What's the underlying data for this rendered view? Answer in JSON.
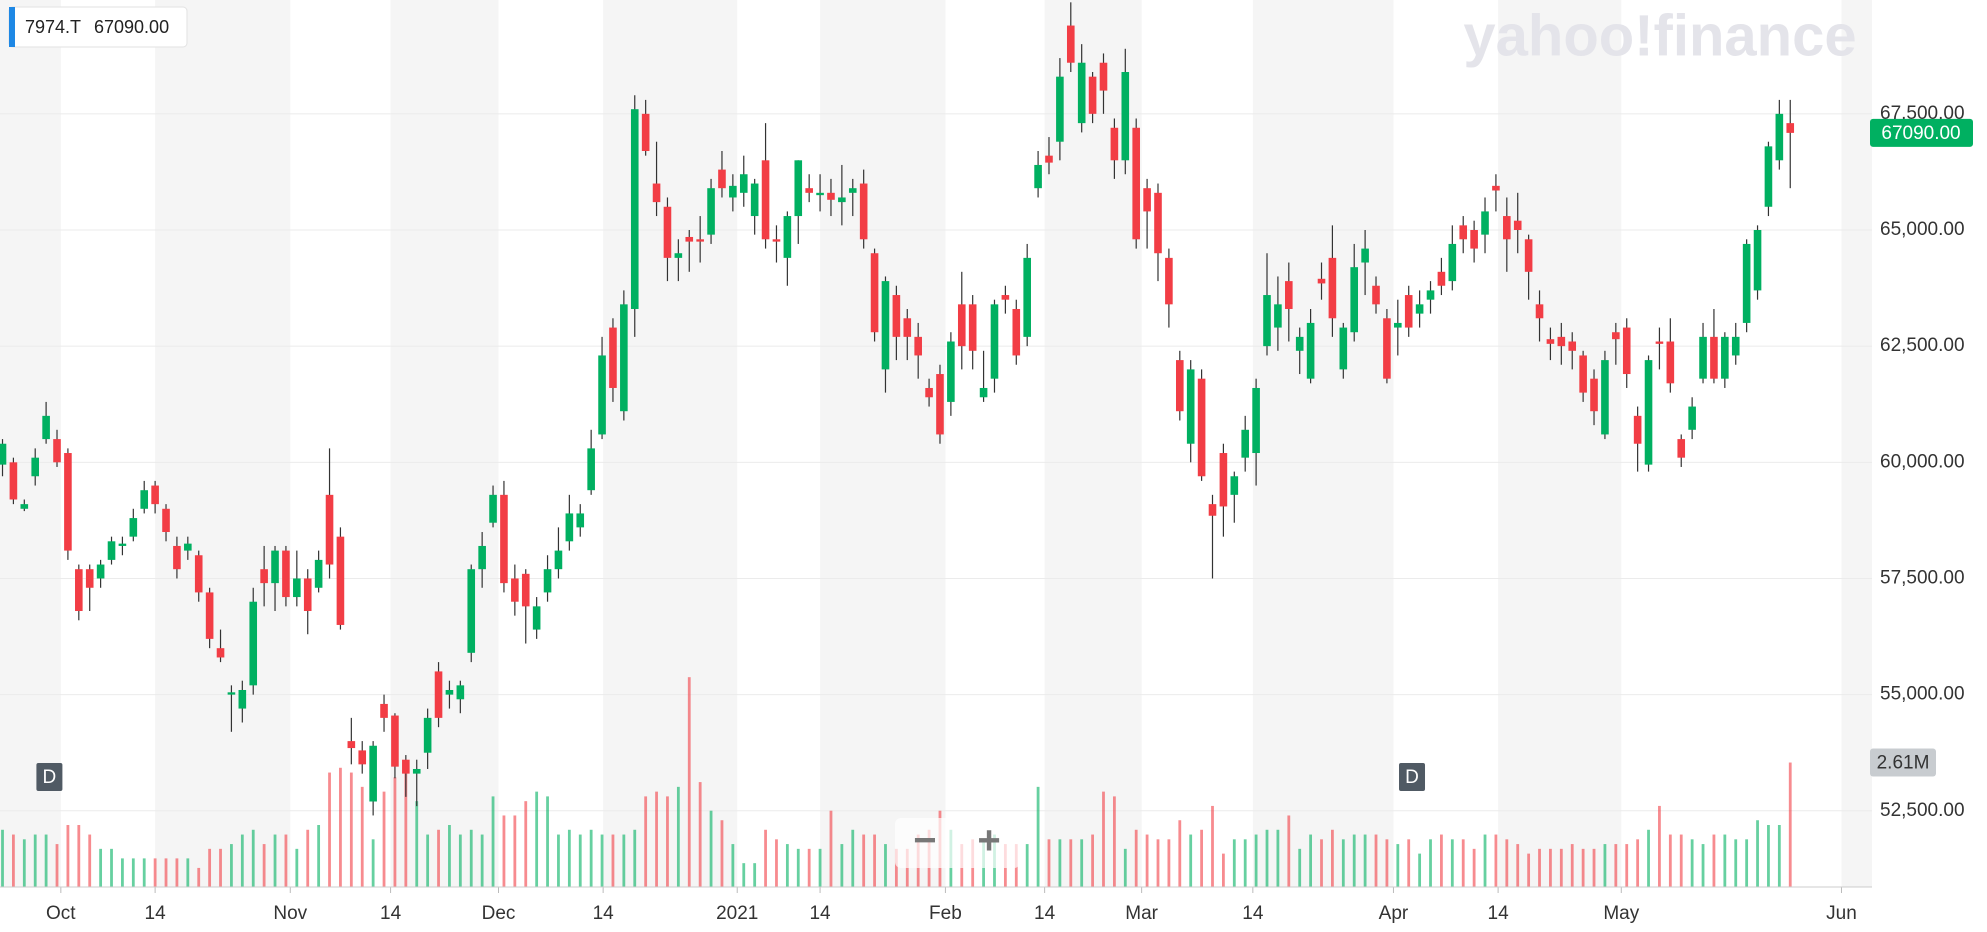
{
  "chart_data": {
    "type": "candlestick",
    "symbol": "7974.T",
    "last_price": {
      "value": 67090,
      "label": "67090.00"
    },
    "last_volume": {
      "value": 2.61,
      "label": "2.61M"
    },
    "watermark": "yahoo!finance",
    "event_markers": [
      {
        "index": 1,
        "label": "D"
      },
      {
        "index": 126,
        "label": "D"
      }
    ],
    "zoom_controls": [
      "−",
      "+"
    ],
    "up_color": "#00b061",
    "down_color": "#f23d45",
    "open": [
      59950,
      60000,
      59000,
      59700,
      60500,
      60500,
      60200,
      57700,
      57700,
      57500,
      57900,
      58200,
      58400,
      59000,
      59500,
      59000,
      58200,
      58100,
      58000,
      57200,
      56000,
      55000,
      54700,
      55200,
      57700,
      57400,
      58100,
      57100,
      57500,
      57300,
      59300,
      58400,
      54000,
      53800,
      52700,
      54800,
      54550,
      53600,
      53300,
      53750,
      55500,
      55000,
      54900,
      55900,
      57700,
      58700,
      59300,
      57500,
      57600,
      56400,
      57200,
      57700,
      58300,
      58600,
      59400,
      60600,
      62900,
      61100,
      63300,
      67500,
      66000,
      65500,
      64400,
      64850,
      64800,
      64900,
      66300,
      65700,
      65800,
      65300,
      66500,
      64800,
      64400,
      65300,
      65900,
      65750,
      65800,
      65600,
      65800,
      66000,
      64500,
      62000,
      63600,
      63100,
      62700,
      61600,
      61900,
      61300,
      63400,
      63400,
      61400,
      61800,
      63600,
      63300,
      62700,
      65900,
      66600,
      66900,
      69400,
      67300,
      68300,
      68600,
      67200,
      66500,
      67200,
      65900,
      65800,
      64400,
      62200,
      60400,
      61800,
      59100,
      60200,
      59300,
      60100,
      60200,
      62500,
      62900,
      63900,
      62400,
      61800,
      63950,
      64400,
      62000,
      62800,
      64300,
      63800,
      63100,
      62900,
      63600,
      63200,
      63500,
      64100,
      63900,
      65100,
      65000,
      64900,
      65950,
      65300,
      65200,
      64800,
      63400,
      62650,
      62700,
      62600,
      62300,
      61800,
      60600,
      62800,
      62900,
      61000,
      59950,
      62600,
      62600,
      60500,
      60700,
      61800,
      62700,
      61800,
      62300,
      63000,
      63700,
      65500,
      66500,
      67300
    ],
    "high": [
      60500,
      60100,
      59200,
      60300,
      61300,
      60700,
      60300,
      57800,
      57800,
      57900,
      58400,
      58400,
      59000,
      59600,
      59600,
      59100,
      58400,
      58400,
      58100,
      57300,
      56400,
      55200,
      55300,
      57300,
      58200,
      58200,
      58200,
      58100,
      57700,
      58100,
      60300,
      58600,
      54500,
      54000,
      54000,
      55000,
      54600,
      53700,
      53600,
      54700,
      55700,
      55300,
      55300,
      57800,
      58500,
      59500,
      59600,
      57800,
      57700,
      57100,
      58000,
      58600,
      59300,
      59100,
      60700,
      62700,
      63100,
      63700,
      67900,
      67800,
      66900,
      65700,
      64800,
      65000,
      65300,
      66100,
      66700,
      66200,
      66600,
      66100,
      67300,
      65100,
      65400,
      66500,
      66200,
      66200,
      66100,
      66400,
      66100,
      66300,
      64600,
      64000,
      63800,
      63300,
      63000,
      61800,
      62100,
      62800,
      64100,
      63600,
      62400,
      63500,
      63800,
      63500,
      64700,
      66700,
      67000,
      68700,
      69900,
      69000,
      68400,
      68800,
      67400,
      68900,
      67400,
      66100,
      66000,
      64600,
      62400,
      62200,
      62000,
      59300,
      60400,
      59800,
      61000,
      61800,
      64500,
      64000,
      64300,
      62900,
      63300,
      64300,
      65100,
      63000,
      64700,
      65000,
      64000,
      63300,
      63500,
      63800,
      63700,
      63900,
      64400,
      65100,
      65300,
      65200,
      65700,
      66200,
      65700,
      65800,
      64900,
      63700,
      62900,
      63000,
      62800,
      62400,
      62000,
      62400,
      63000,
      63100,
      61200,
      62300,
      62900,
      63100,
      60600,
      61400,
      63000,
      63300,
      62800,
      63000,
      64800,
      65100,
      66900,
      67800,
      67800
    ],
    "low": [
      59700,
      59100,
      58950,
      59500,
      60400,
      59900,
      57900,
      56600,
      56800,
      57300,
      57800,
      58000,
      58300,
      58900,
      58900,
      58300,
      57500,
      57900,
      57000,
      56000,
      55700,
      54200,
      54400,
      55000,
      56900,
      56800,
      56900,
      56900,
      56300,
      57200,
      57500,
      56400,
      53500,
      53300,
      52400,
      54200,
      53200,
      52800,
      52600,
      53400,
      54300,
      54700,
      54600,
      55700,
      57300,
      58600,
      57200,
      56700,
      56100,
      56200,
      57000,
      57500,
      58100,
      58400,
      59300,
      60500,
      61300,
      60900,
      62700,
      66600,
      65300,
      63900,
      63900,
      64100,
      64300,
      64700,
      65700,
      65400,
      65500,
      64900,
      64600,
      64300,
      63800,
      64700,
      65600,
      65400,
      65300,
      65100,
      65300,
      64600,
      62600,
      61500,
      62200,
      62200,
      61800,
      61200,
      60400,
      61000,
      62000,
      62000,
      61300,
      61500,
      63200,
      62100,
      62500,
      65700,
      66200,
      66500,
      68400,
      67100,
      67300,
      67500,
      66100,
      66200,
      64600,
      64600,
      63900,
      62900,
      60900,
      60000,
      59600,
      57500,
      58400,
      58700,
      59800,
      59500,
      62300,
      62400,
      62600,
      61900,
      61700,
      63500,
      62700,
      61800,
      62600,
      63600,
      63200,
      61700,
      62300,
      62700,
      62900,
      63200,
      63600,
      63700,
      64500,
      64300,
      64500,
      65400,
      64100,
      64500,
      63500,
      62600,
      62200,
      62100,
      62000,
      61300,
      60800,
      60500,
      62100,
      61600,
      59800,
      59800,
      62000,
      61500,
      59900,
      60500,
      61700,
      61700,
      61600,
      62100,
      62800,
      63500,
      65300,
      66300,
      65900
    ],
    "close": [
      60400,
      59200,
      59100,
      60100,
      61000,
      60000,
      58100,
      56800,
      57300,
      57800,
      58300,
      58250,
      58800,
      59400,
      59100,
      58500,
      57700,
      58250,
      57200,
      56200,
      55800,
      55050,
      55100,
      57000,
      57400,
      58100,
      57100,
      57500,
      56800,
      57900,
      57800,
      56500,
      53850,
      53500,
      53900,
      54500,
      53450,
      53300,
      53400,
      54500,
      54500,
      55100,
      55200,
      57700,
      58200,
      59300,
      57400,
      57000,
      56900,
      56900,
      57700,
      58100,
      58900,
      58900,
      60300,
      62300,
      61600,
      63400,
      67600,
      66700,
      65600,
      64400,
      64500,
      64750,
      64750,
      65900,
      65900,
      65950,
      66200,
      66000,
      64800,
      64750,
      65300,
      66500,
      65800,
      65800,
      65650,
      65700,
      65900,
      64800,
      62800,
      63900,
      62700,
      62700,
      62300,
      61400,
      60600,
      62600,
      62500,
      62400,
      61600,
      63400,
      63500,
      62300,
      64400,
      66400,
      66450,
      68300,
      68600,
      68600,
      67500,
      68000,
      66500,
      68400,
      64800,
      65400,
      64500,
      63400,
      61100,
      62000,
      59700,
      58850,
      59050,
      59700,
      60700,
      61600,
      63600,
      63400,
      63300,
      62700,
      63000,
      63850,
      63100,
      62900,
      64200,
      64600,
      63400,
      61800,
      63000,
      62900,
      63400,
      63700,
      63800,
      64700,
      64800,
      64600,
      65400,
      65850,
      64800,
      65000,
      64100,
      63100,
      62550,
      62500,
      62400,
      61500,
      61100,
      62200,
      62650,
      61900,
      60400,
      62200,
      62550,
      61700,
      60100,
      61200,
      62700,
      61800,
      62700,
      62700,
      64700,
      65000,
      66800,
      67500,
      67090
    ],
    "volume": [
      1.2,
      1.1,
      1.0,
      1.1,
      1.1,
      0.9,
      1.3,
      1.3,
      1.1,
      0.8,
      0.8,
      0.6,
      0.6,
      0.6,
      0.6,
      0.6,
      0.6,
      0.6,
      0.4,
      0.8,
      0.8,
      0.9,
      1.1,
      1.2,
      0.9,
      1.1,
      1.1,
      0.8,
      1.2,
      1.3,
      2.4,
      2.5,
      2.4,
      2.1,
      1.0,
      2.0,
      2.3,
      2.4,
      1.8,
      1.1,
      1.2,
      1.3,
      1.1,
      1.2,
      1.1,
      1.9,
      1.5,
      1.5,
      1.8,
      2.0,
      1.9,
      1.1,
      1.2,
      1.1,
      1.2,
      1.1,
      1.1,
      1.1,
      1.2,
      1.9,
      2.0,
      1.9,
      2.1,
      4.4,
      2.2,
      1.6,
      1.4,
      0.9,
      0.5,
      0.5,
      1.2,
      1.0,
      0.9,
      0.8,
      0.8,
      0.8,
      1.6,
      0.9,
      1.2,
      1.1,
      1.1,
      0.9,
      0.8,
      0.8,
      1.1,
      1.2,
      1.6,
      1.2,
      0.9,
      1.0,
      1.0,
      1.1,
      0.9,
      0.9,
      0.9,
      2.1,
      1.0,
      1.0,
      1.0,
      1.0,
      1.1,
      2.0,
      1.9,
      0.8,
      1.2,
      1.1,
      1.0,
      1.0,
      1.4,
      1.1,
      1.2,
      1.7,
      0.7,
      1.0,
      1.0,
      1.1,
      1.2,
      1.2,
      1.5,
      0.8,
      1.1,
      1.0,
      1.2,
      1.0,
      1.1,
      1.1,
      1.1,
      1.0,
      0.9,
      1.0,
      0.7,
      1.0,
      1.1,
      1.0,
      1.0,
      0.8,
      1.1,
      1.1,
      1.0,
      0.9,
      0.7,
      0.8,
      0.8,
      0.8,
      0.9,
      0.8,
      0.8,
      0.9,
      0.9,
      0.9,
      1.0,
      1.2,
      1.7,
      1.1,
      1.1,
      1.0,
      0.9,
      1.1,
      1.1,
      1.0,
      1.0,
      1.4,
      1.3,
      1.3,
      2.61
    ],
    "xlim": [
      -0.23,
      171.5
    ],
    "xticks": [
      {
        "value": 5.35,
        "label": "Oct"
      },
      {
        "value": 14.0,
        "label": "14"
      },
      {
        "value": 26.4,
        "label": "Nov"
      },
      {
        "value": 35.6,
        "label": "14"
      },
      {
        "value": 45.5,
        "label": "Dec"
      },
      {
        "value": 55.1,
        "label": "14"
      },
      {
        "value": 67.4,
        "label": "2021"
      },
      {
        "value": 75.0,
        "label": "14"
      },
      {
        "value": 86.5,
        "label": "Feb"
      },
      {
        "value": 95.6,
        "label": "14"
      },
      {
        "value": 104.5,
        "label": "Mar"
      },
      {
        "value": 114.7,
        "label": "14"
      },
      {
        "value": 127.6,
        "label": "Apr"
      },
      {
        "value": 137.2,
        "label": "14"
      },
      {
        "value": 148.5,
        "label": "May"
      },
      {
        "value": 168.7,
        "label": "Jun"
      }
    ],
    "ylim": [
      50860,
      69950
    ],
    "yticks": [
      {
        "value": 52500,
        "label": "52,500.00"
      },
      {
        "value": 55000,
        "label": "55,000.00"
      },
      {
        "value": 57500,
        "label": "57,500.00"
      },
      {
        "value": 60000,
        "label": "60,000.00"
      },
      {
        "value": 62500,
        "label": "62,500.00"
      },
      {
        "value": 65000,
        "label": "65,000.00"
      },
      {
        "value": 67500,
        "label": "67,500.00"
      }
    ],
    "volume_lim": [
      0,
      18.6
    ],
    "grid": true
  }
}
